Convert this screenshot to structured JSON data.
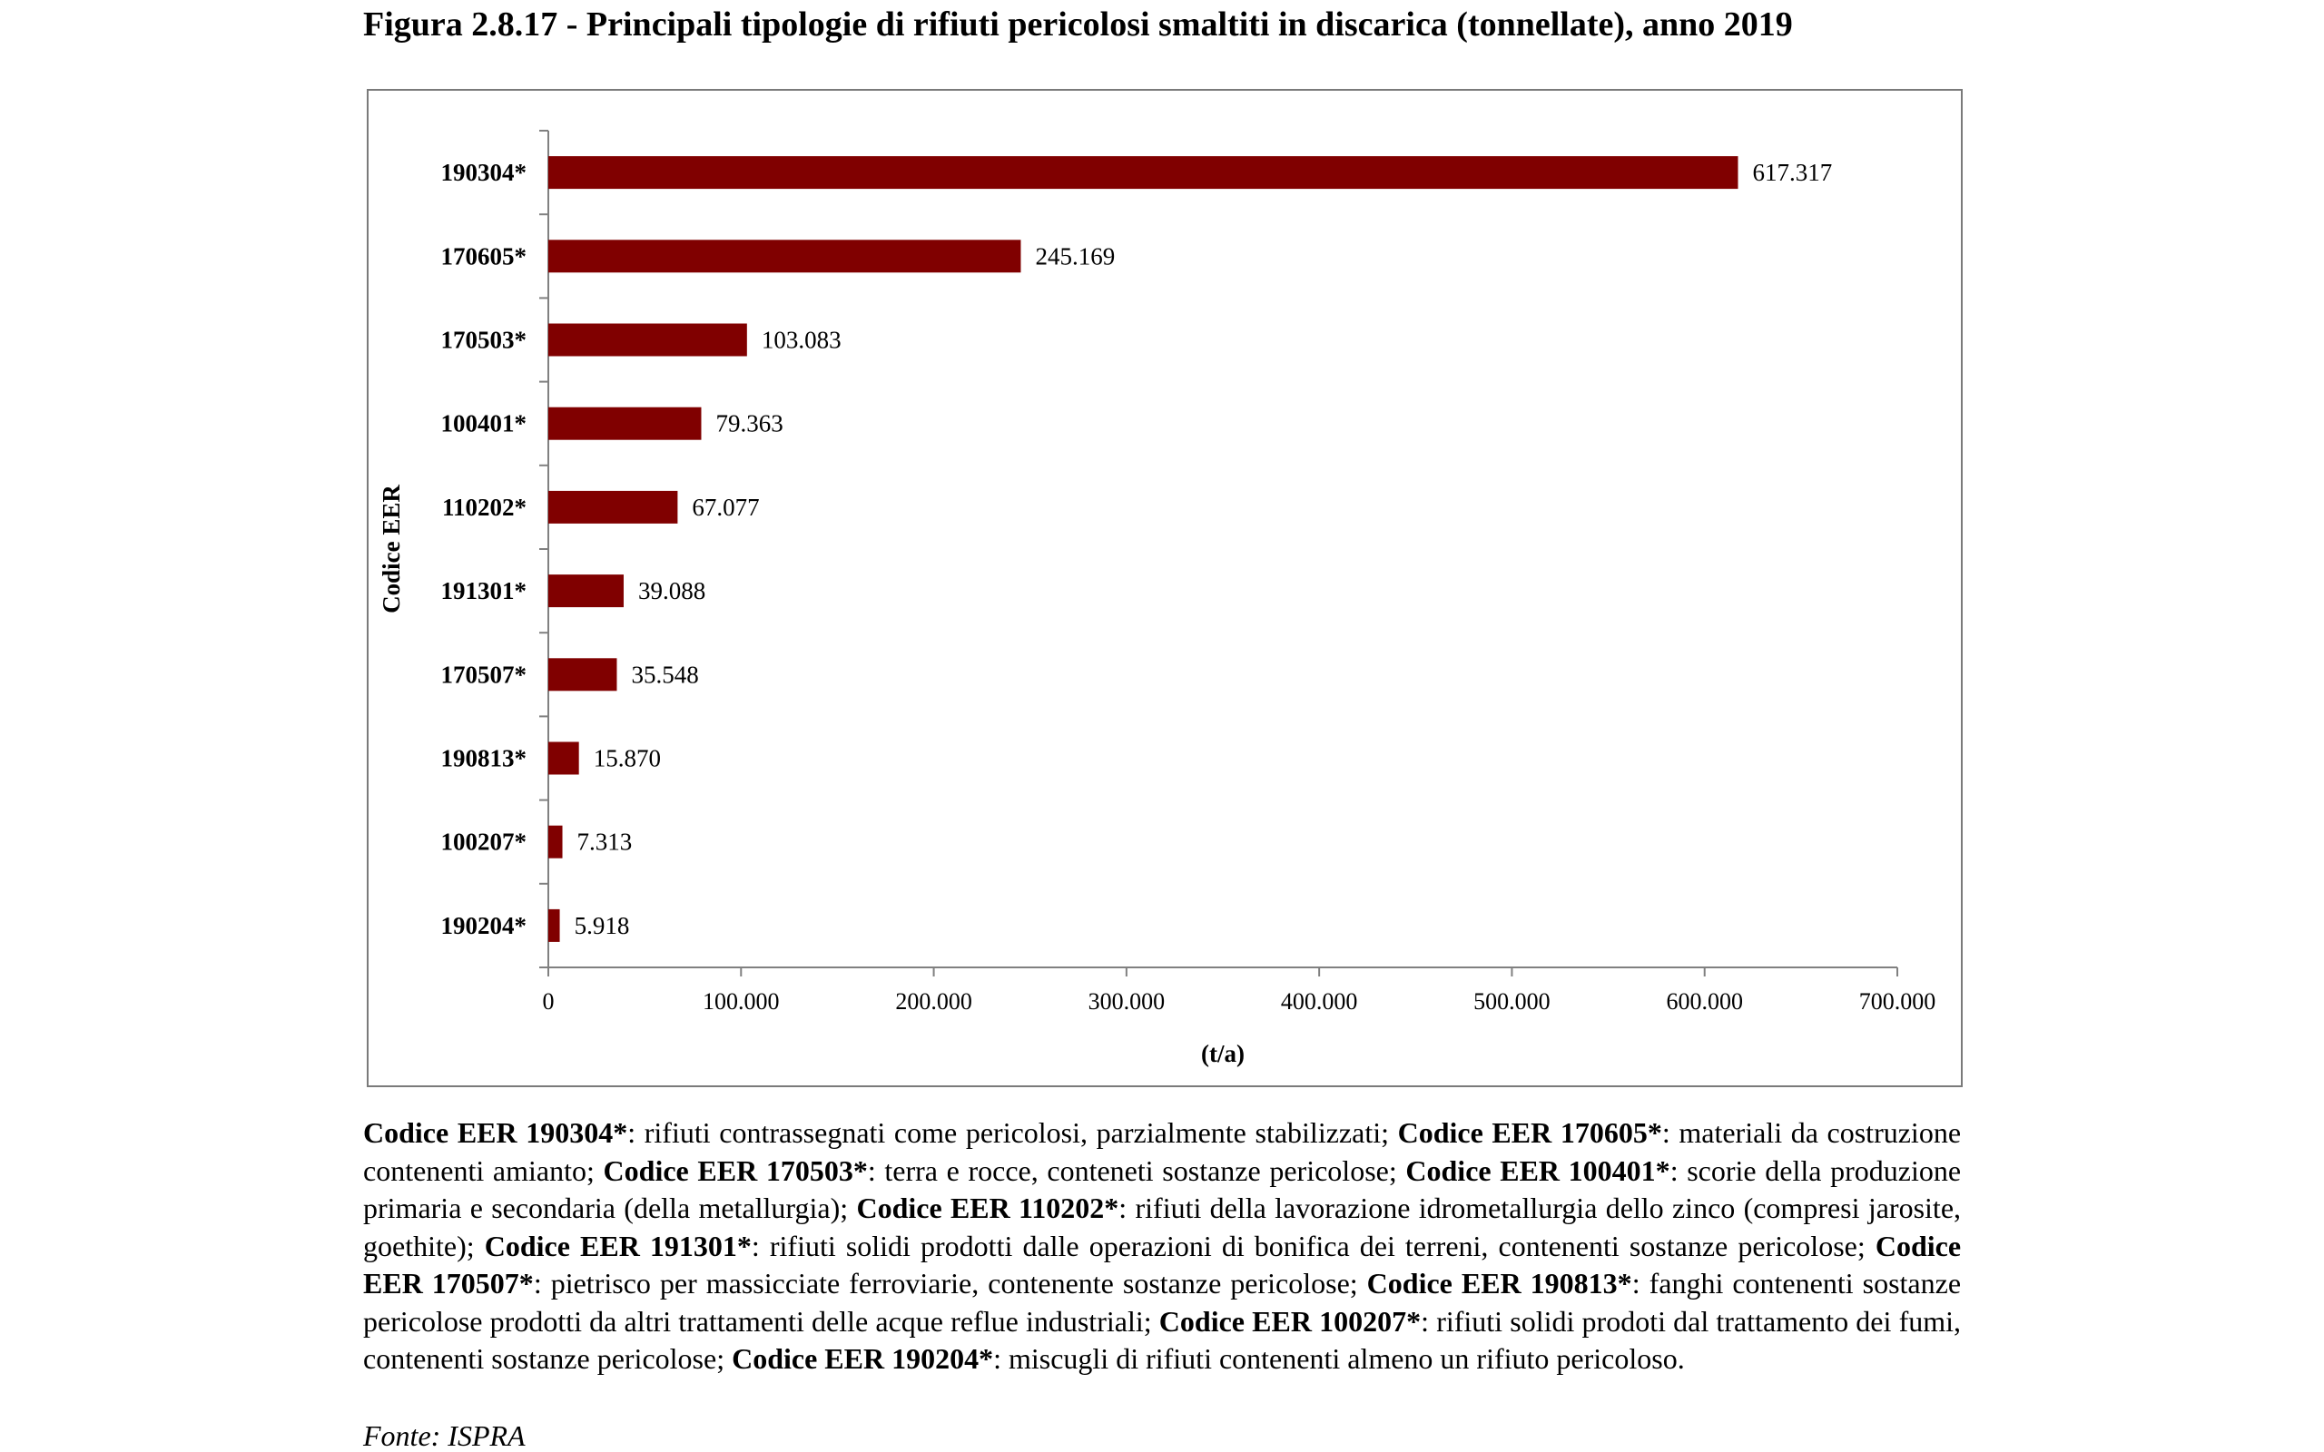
{
  "title": "Figura 2.8.17 - Principali tipologie di rifiuti pericolosi smaltiti in discarica (tonnellate), anno 2019",
  "chart_data": {
    "type": "bar",
    "orientation": "horizontal",
    "categories": [
      "190304*",
      "170605*",
      "170503*",
      "100401*",
      "110202*",
      "191301*",
      "170507*",
      "190813*",
      "100207*",
      "190204*"
    ],
    "values": [
      617317,
      245169,
      103083,
      79363,
      67077,
      39088,
      35548,
      15870,
      7313,
      5918
    ],
    "value_labels": [
      "617.317",
      "245.169",
      "103.083",
      "79.363",
      "67.077",
      "39.088",
      "35.548",
      "15.870",
      "7.313",
      "5.918"
    ],
    "xlabel": "(t/a)",
    "ylabel": "Codice EER",
    "xlim": [
      0,
      700000
    ],
    "xticks": [
      0,
      100000,
      200000,
      300000,
      400000,
      500000,
      600000,
      700000
    ],
    "xtick_labels": [
      "0",
      "100.000",
      "200.000",
      "300.000",
      "400.000",
      "500.000",
      "600.000",
      "700.000"
    ],
    "bar_color": "#800000",
    "grid": false,
    "legend": "none"
  },
  "caption": [
    {
      "code": "Codice EER 190304*",
      "text": ": rifiuti contrassegnati come pericolosi, parzialmente stabilizzati; "
    },
    {
      "code": "Codice EER 170605*",
      "text": ": materiali da costruzione contenenti amianto; "
    },
    {
      "code": "Codice EER 170503*",
      "text": ": terra e rocce, conteneti sostanze pericolose; "
    },
    {
      "code": "Codice EER 100401*",
      "text": ": scorie della produzione primaria e secondaria (della metallurgia); "
    },
    {
      "code": "Codice EER 110202*",
      "text": ": rifiuti della lavorazione idrometallurgia dello zinco (compresi jarosite, goethite); "
    },
    {
      "code": "Codice EER 191301*",
      "text": ": rifiuti solidi prodotti dalle operazioni di bonifica dei terreni, contenenti sostanze pericolose; "
    },
    {
      "code": "Codice EER 170507*",
      "text": ": pietrisco per massicciate ferroviarie, contenente sostanze pericolose; "
    },
    {
      "code": "Codice EER 190813*",
      "text": ": fanghi contenenti sostanze pericolose prodotti da altri trattamenti delle acque reflue industriali; "
    },
    {
      "code": "Codice EER 100207*",
      "text": ": rifiuti solidi prodoti dal trattamento dei fumi, contenenti sostanze pericolose; "
    },
    {
      "code": "Codice EER 190204*",
      "text": ": miscugli di rifiuti contenenti almeno un rifiuto pericoloso."
    }
  ],
  "source": "Fonte: ISPRA"
}
